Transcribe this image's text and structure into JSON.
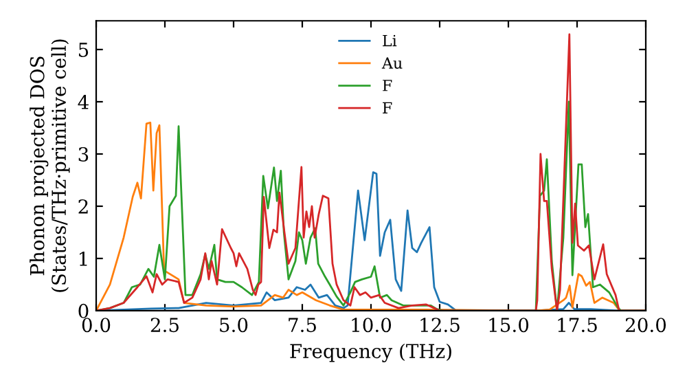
{
  "chart_data": {
    "type": "line",
    "xlabel": "Frequency (THz)",
    "ylabel": "Phonon projected DOS\n(States/THz·primitive cell)",
    "xlim": [
      0,
      20
    ],
    "ylim": [
      0,
      5.55
    ],
    "xticks": [
      {
        "value": 0,
        "label": "0.0"
      },
      {
        "value": 2.5,
        "label": "2.5"
      },
      {
        "value": 5,
        "label": "5.0"
      },
      {
        "value": 7.5,
        "label": "7.5"
      },
      {
        "value": 10,
        "label": "10.0"
      },
      {
        "value": 12.5,
        "label": "12.5"
      },
      {
        "value": 15,
        "label": "15.0"
      },
      {
        "value": 17.5,
        "label": "17.5"
      },
      {
        "value": 20,
        "label": "20.0"
      }
    ],
    "yticks": [
      0,
      1,
      2,
      3,
      4,
      5
    ],
    "legend": "top",
    "grid": false,
    "marker": "none",
    "line_style": "solid",
    "series": [
      {
        "name": "Li",
        "color": "#1f77b4",
        "x": [
          0,
          1,
          2,
          3,
          3.5,
          4,
          5,
          6,
          6.2,
          6.5,
          7,
          7.3,
          7.6,
          7.8,
          8.1,
          8.4,
          8.7,
          9.0,
          9.15,
          9.53,
          9.77,
          10.08,
          10.2,
          10.33,
          10.5,
          10.7,
          10.9,
          11.1,
          11.33,
          11.5,
          11.67,
          11.83,
          12.13,
          12.3,
          12.5,
          12.8,
          13.1,
          16,
          17.0,
          17.2,
          17.4,
          18,
          19,
          20
        ],
        "values": [
          0,
          0.02,
          0.04,
          0.05,
          0.1,
          0.15,
          0.1,
          0.15,
          0.35,
          0.2,
          0.25,
          0.45,
          0.4,
          0.5,
          0.25,
          0.3,
          0.1,
          0.05,
          0.1,
          2.3,
          1.35,
          2.65,
          2.62,
          1.05,
          1.5,
          1.74,
          0.6,
          0.38,
          1.92,
          1.2,
          1.12,
          1.3,
          1.6,
          0.45,
          0.17,
          0.12,
          0,
          0,
          0.03,
          0.15,
          0.03,
          0.03,
          0,
          0
        ]
      },
      {
        "name": "Au",
        "color": "#ff7f0e",
        "x": [
          0,
          0.5,
          1.0,
          1.33,
          1.5,
          1.63,
          1.83,
          1.97,
          2.08,
          2.2,
          2.3,
          2.47,
          3.0,
          3.2,
          4,
          5,
          6,
          6.5,
          6.8,
          7.0,
          7.3,
          7.5,
          8,
          8.5,
          9,
          12,
          16,
          16.5,
          17.0,
          17.1,
          17.23,
          17.33,
          17.55,
          17.67,
          17.83,
          17.97,
          18.13,
          18.42,
          18.83,
          19.05,
          20
        ],
        "values": [
          0,
          0.5,
          1.4,
          2.18,
          2.45,
          2.15,
          3.58,
          3.6,
          2.3,
          3.4,
          3.55,
          0.77,
          0.6,
          0.15,
          0.1,
          0.08,
          0.1,
          0.3,
          0.25,
          0.4,
          0.3,
          0.35,
          0.2,
          0.1,
          0.02,
          0.02,
          0,
          0.02,
          0.2,
          0.25,
          0.48,
          0.06,
          0.7,
          0.66,
          0.48,
          0.55,
          0.15,
          0.25,
          0.15,
          0,
          0
        ]
      },
      {
        "name": "F",
        "color": "#2ca02c",
        "x": [
          0,
          0.5,
          1.0,
          1.3,
          1.6,
          1.9,
          2.1,
          2.3,
          2.5,
          2.67,
          2.9,
          3.0,
          3.25,
          3.5,
          3.8,
          3.97,
          4.1,
          4.3,
          4.4,
          4.7,
          5.0,
          5.3,
          5.67,
          5.92,
          6.08,
          6.25,
          6.47,
          6.58,
          6.72,
          6.83,
          7.0,
          7.25,
          7.38,
          7.5,
          7.63,
          7.8,
          7.97,
          8.08,
          8.33,
          8.5,
          8.75,
          9.0,
          9.25,
          9.42,
          9.67,
          10.0,
          10.13,
          10.33,
          10.58,
          10.75,
          11.17,
          12.17,
          12.4,
          12.6,
          16,
          16.15,
          16.3,
          16.4,
          16.58,
          16.77,
          17.0,
          17.2,
          17.33,
          17.55,
          17.67,
          17.8,
          17.9,
          18.08,
          18.33,
          18.67,
          19.0,
          19.1,
          20
        ],
        "values": [
          0,
          0.05,
          0.15,
          0.45,
          0.5,
          0.8,
          0.65,
          1.26,
          0.6,
          2.0,
          2.2,
          3.53,
          0.3,
          0.3,
          0.7,
          1.08,
          0.8,
          1.26,
          0.6,
          0.55,
          0.55,
          0.45,
          0.3,
          0.55,
          2.58,
          1.96,
          2.74,
          2.1,
          2.68,
          1.5,
          0.6,
          0.95,
          1.5,
          1.35,
          0.9,
          1.4,
          1.58,
          0.9,
          0.65,
          0.5,
          0.27,
          0.1,
          0.35,
          0.55,
          0.6,
          0.65,
          0.85,
          0.25,
          0.3,
          0.2,
          0.1,
          0.1,
          0.03,
          0,
          0,
          2.2,
          2.3,
          2.9,
          0.95,
          0,
          1.4,
          4.0,
          0.68,
          2.8,
          2.8,
          1.6,
          1.85,
          0.45,
          0.5,
          0.35,
          0.05,
          0,
          0
        ]
      },
      {
        "name": "F",
        "color": "#d62728",
        "x": [
          0,
          0.5,
          1.0,
          1.5,
          1.83,
          2.05,
          2.2,
          2.4,
          2.6,
          3.0,
          3.2,
          3.5,
          3.8,
          3.97,
          4.1,
          4.2,
          4.4,
          4.58,
          4.9,
          5.0,
          5.1,
          5.2,
          5.5,
          5.7,
          5.8,
          5.9,
          6.0,
          6.1,
          6.3,
          6.45,
          6.58,
          6.67,
          6.85,
          7.0,
          7.25,
          7.47,
          7.55,
          7.65,
          7.75,
          7.85,
          7.95,
          8.1,
          8.25,
          8.45,
          8.6,
          8.75,
          9.0,
          9.25,
          9.4,
          9.6,
          9.8,
          10.0,
          10.3,
          10.5,
          11.0,
          11.5,
          12.0,
          12.3,
          12.5,
          16,
          16.05,
          16.17,
          16.3,
          16.4,
          16.58,
          16.77,
          16.88,
          17.22,
          17.33,
          17.43,
          17.53,
          17.75,
          17.93,
          18.13,
          18.45,
          18.58,
          18.9,
          19.03,
          20
        ],
        "values": [
          0,
          0.05,
          0.15,
          0.45,
          0.66,
          0.35,
          0.7,
          0.5,
          0.6,
          0.55,
          0.15,
          0.25,
          0.6,
          1.1,
          0.6,
          0.95,
          0.5,
          1.56,
          1.2,
          1.1,
          0.85,
          1.1,
          0.8,
          0.4,
          0.3,
          0.5,
          0.55,
          2.18,
          1.2,
          1.55,
          1.5,
          2.26,
          1.5,
          0.9,
          1.2,
          2.75,
          1.4,
          1.9,
          1.6,
          2.0,
          1.4,
          1.85,
          2.2,
          2.15,
          0.9,
          0.5,
          0.2,
          0.1,
          0.45,
          0.3,
          0.35,
          0.25,
          0.3,
          0.15,
          0.05,
          0.1,
          0.12,
          0.05,
          0,
          0,
          0.2,
          3.0,
          2.1,
          2.1,
          0.8,
          0,
          0.4,
          5.29,
          1.3,
          2.05,
          1.25,
          1.15,
          1.25,
          0.6,
          1.27,
          0.7,
          0.3,
          0,
          0
        ]
      }
    ]
  }
}
